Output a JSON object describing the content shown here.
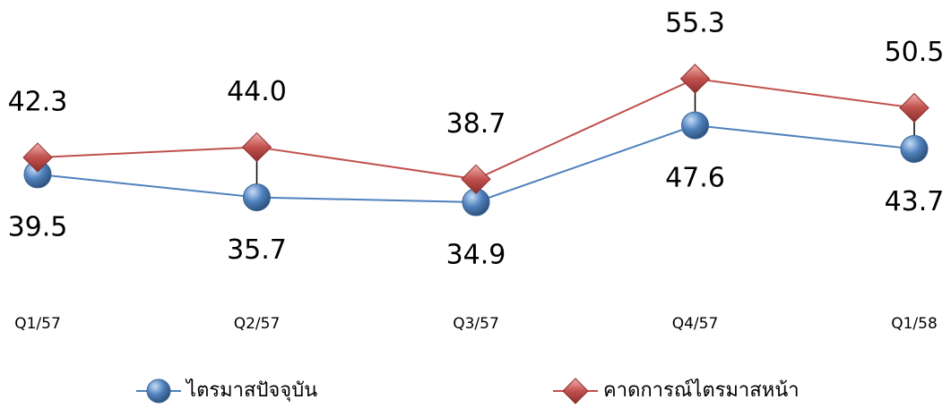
{
  "chart_data": {
    "type": "line",
    "categories": [
      "Q1/57",
      "Q2/57",
      "Q3/57",
      "Q4/57",
      "Q1/58"
    ],
    "series": [
      {
        "name": "ไตรมาสปัจจุบัน",
        "color": "#4f81bd",
        "marker": "circle",
        "values": [
          39.5,
          35.7,
          34.9,
          47.6,
          43.7
        ]
      },
      {
        "name": "คาดการณ์ไตรมาสหน้า",
        "color": "#c0504d",
        "marker": "diamond",
        "values": [
          42.3,
          44.0,
          38.7,
          55.3,
          50.5
        ],
        "value_labels": [
          "42.3",
          "44.0",
          "38.7",
          "55.3",
          "50.5"
        ]
      }
    ]
  }
}
